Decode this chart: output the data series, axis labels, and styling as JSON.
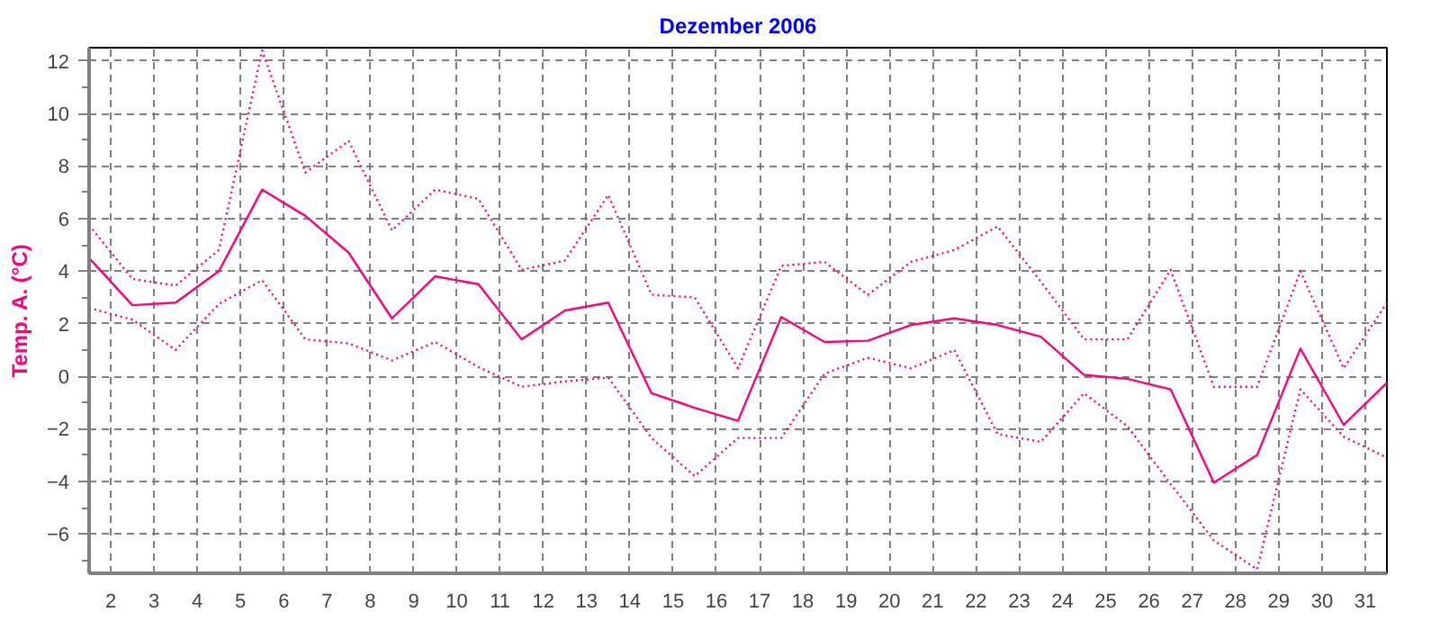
{
  "chart_data": {
    "type": "line",
    "title": "Dezember 2006",
    "ylabel": "Temp. A. (°C)",
    "x": [
      1.5,
      2.5,
      3.5,
      4.5,
      5.5,
      6.5,
      7.5,
      8.5,
      9.5,
      10.5,
      11.5,
      12.5,
      13.5,
      14.5,
      15.5,
      16.5,
      17.5,
      18.5,
      19.5,
      20.5,
      21.5,
      22.5,
      23.5,
      24.5,
      25.5,
      26.5,
      27.5,
      28.5,
      29.5,
      30.5,
      31.5
    ],
    "series": [
      {
        "color": "#ff0080",
        "line_style": "dotted",
        "values": [
          5.75,
          3.7,
          3.45,
          4.8,
          12.4,
          7.75,
          8.95,
          5.55,
          7.1,
          6.75,
          4.05,
          4.4,
          6.9,
          3.1,
          3.0,
          0.3,
          4.2,
          4.35,
          3.1,
          4.35,
          4.8,
          5.7,
          3.6,
          1.4,
          1.4,
          4.05,
          -0.4,
          -0.4,
          4.0,
          0.3,
          2.8
        ]
      },
      {
        "color": "#ff0080",
        "line_style": "solid",
        "values": [
          4.5,
          2.7,
          2.8,
          4.0,
          7.1,
          6.1,
          4.7,
          2.2,
          3.8,
          3.5,
          1.4,
          2.5,
          2.8,
          -0.65,
          -1.2,
          -1.7,
          2.25,
          1.3,
          1.35,
          1.95,
          2.2,
          1.95,
          1.5,
          0.05,
          -0.1,
          -0.5,
          -4.05,
          -3.0,
          1.05,
          -1.85,
          -0.25
        ]
      },
      {
        "color": "#ff0080",
        "line_style": "dotted",
        "values": [
          2.6,
          2.15,
          1.0,
          2.75,
          3.65,
          1.4,
          1.25,
          0.6,
          1.3,
          0.35,
          -0.4,
          -0.2,
          -0.05,
          -2.35,
          -3.8,
          -2.35,
          -2.35,
          0.1,
          0.7,
          0.3,
          1.0,
          -2.2,
          -2.5,
          -0.65,
          -1.9,
          -4.1,
          -6.25,
          -7.35,
          -0.5,
          -2.3,
          -3.1
        ]
      }
    ],
    "xlim": [
      1.5,
      31.5
    ],
    "xticks": [
      2,
      3,
      4,
      5,
      6,
      7,
      8,
      9,
      10,
      11,
      12,
      13,
      14,
      15,
      16,
      17,
      18,
      19,
      20,
      21,
      22,
      23,
      24,
      25,
      26,
      27,
      28,
      29,
      30,
      31
    ],
    "ylim": [
      -7.5,
      12.5
    ],
    "yticks": [
      -6,
      -4,
      -2,
      0,
      2,
      4,
      6,
      8,
      10,
      12
    ],
    "grid": true,
    "marker": "none"
  }
}
